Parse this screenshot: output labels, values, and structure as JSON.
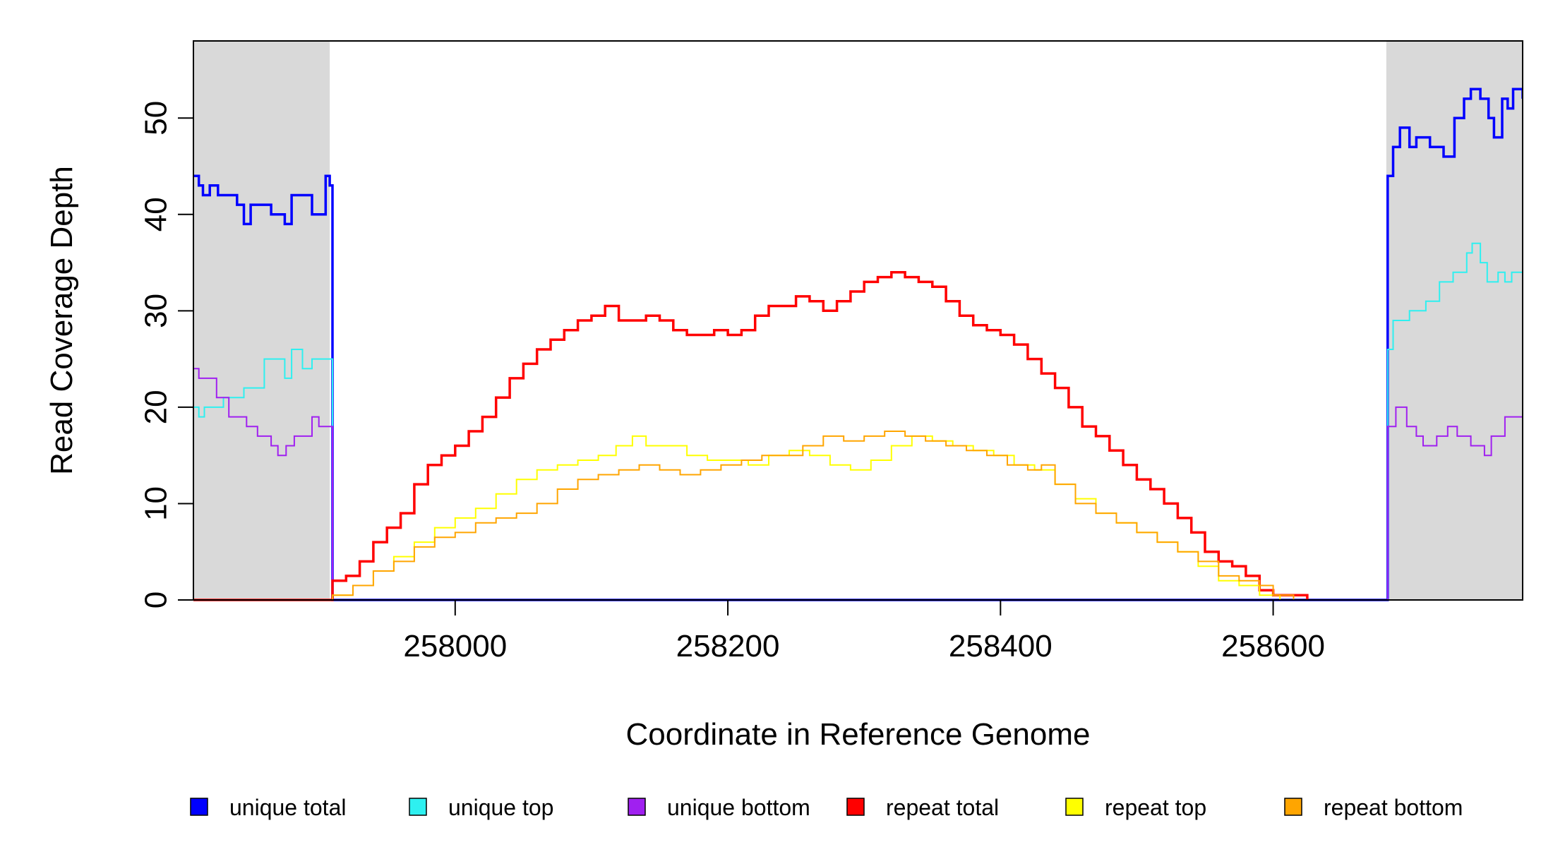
{
  "chart_data": {
    "type": "line",
    "xlabel": "Coordinate in Reference Genome",
    "ylabel": "Read Coverage Depth",
    "xlim": [
      257808,
      258783
    ],
    "ylim": [
      0,
      58
    ],
    "x_ticks": [
      258000,
      258200,
      258400,
      258600
    ],
    "y_ticks": [
      0,
      10,
      20,
      30,
      40,
      50
    ],
    "shaded_regions": [
      {
        "from": 257808,
        "to": 257908,
        "color": "#d9d9d9"
      },
      {
        "from": 258683,
        "to": 258783,
        "color": "#d9d9d9"
      }
    ],
    "legend_position": "bottom",
    "series": [
      {
        "name": "unique total",
        "color": "#0000ff",
        "points": [
          [
            257808,
            44
          ],
          [
            257812,
            43
          ],
          [
            257815,
            42
          ],
          [
            257820,
            43
          ],
          [
            257826,
            42
          ],
          [
            257840,
            41
          ],
          [
            257845,
            39
          ],
          [
            257850,
            41
          ],
          [
            257865,
            40
          ],
          [
            257875,
            39
          ],
          [
            257880,
            42
          ],
          [
            257895,
            40
          ],
          [
            257905,
            44
          ],
          [
            257908,
            43
          ],
          [
            257910,
            0
          ],
          [
            258682,
            0
          ],
          [
            258684,
            44
          ],
          [
            258688,
            47
          ],
          [
            258693,
            49
          ],
          [
            258700,
            47
          ],
          [
            258705,
            48
          ],
          [
            258715,
            47
          ],
          [
            258725,
            46
          ],
          [
            258733,
            50
          ],
          [
            258740,
            52
          ],
          [
            258745,
            53
          ],
          [
            258752,
            52
          ],
          [
            258758,
            50
          ],
          [
            258762,
            48
          ],
          [
            258768,
            52
          ],
          [
            258772,
            51
          ],
          [
            258776,
            53
          ],
          [
            258783,
            52
          ]
        ]
      },
      {
        "name": "unique top",
        "color": "#2ef0f0",
        "points": [
          [
            257808,
            20
          ],
          [
            257812,
            19
          ],
          [
            257816,
            20
          ],
          [
            257830,
            21
          ],
          [
            257845,
            22
          ],
          [
            257860,
            25
          ],
          [
            257870,
            25
          ],
          [
            257875,
            23
          ],
          [
            257880,
            26
          ],
          [
            257888,
            24
          ],
          [
            257895,
            25
          ],
          [
            257908,
            25
          ],
          [
            257910,
            0
          ],
          [
            258682,
            0
          ],
          [
            258684,
            26
          ],
          [
            258688,
            29
          ],
          [
            258700,
            30
          ],
          [
            258712,
            31
          ],
          [
            258722,
            33
          ],
          [
            258732,
            34
          ],
          [
            258742,
            36
          ],
          [
            258746,
            37
          ],
          [
            258752,
            35
          ],
          [
            258757,
            33
          ],
          [
            258765,
            34
          ],
          [
            258770,
            33
          ],
          [
            258775,
            34
          ],
          [
            258783,
            34
          ]
        ]
      },
      {
        "name": "unique bottom",
        "color": "#a020f0",
        "points": [
          [
            257808,
            24
          ],
          [
            257812,
            23
          ],
          [
            257825,
            21
          ],
          [
            257834,
            19
          ],
          [
            257847,
            18
          ],
          [
            257855,
            17
          ],
          [
            257865,
            16
          ],
          [
            257870,
            15
          ],
          [
            257876,
            16
          ],
          [
            257882,
            17
          ],
          [
            257895,
            19
          ],
          [
            257900,
            18
          ],
          [
            257908,
            18
          ],
          [
            257910,
            0
          ],
          [
            258682,
            0
          ],
          [
            258684,
            18
          ],
          [
            258690,
            20
          ],
          [
            258698,
            18
          ],
          [
            258705,
            17
          ],
          [
            258710,
            16
          ],
          [
            258720,
            17
          ],
          [
            258728,
            18
          ],
          [
            258735,
            17
          ],
          [
            258745,
            16
          ],
          [
            258755,
            15
          ],
          [
            258760,
            17
          ],
          [
            258770,
            19
          ],
          [
            258783,
            19
          ]
        ]
      },
      {
        "name": "repeat total",
        "color": "#ff0000",
        "points": [
          [
            257808,
            0
          ],
          [
            257908,
            0
          ],
          [
            257910,
            2
          ],
          [
            257920,
            2.5
          ],
          [
            257930,
            4
          ],
          [
            257940,
            6
          ],
          [
            257950,
            7.5
          ],
          [
            257960,
            9
          ],
          [
            257970,
            12
          ],
          [
            257980,
            14
          ],
          [
            257990,
            15
          ],
          [
            258000,
            16
          ],
          [
            258010,
            17.5
          ],
          [
            258020,
            19
          ],
          [
            258030,
            21
          ],
          [
            258040,
            23
          ],
          [
            258050,
            24.5
          ],
          [
            258060,
            26
          ],
          [
            258070,
            27
          ],
          [
            258080,
            28
          ],
          [
            258090,
            29
          ],
          [
            258100,
            29.5
          ],
          [
            258110,
            30.5
          ],
          [
            258120,
            29
          ],
          [
            258130,
            29
          ],
          [
            258140,
            29.5
          ],
          [
            258150,
            29
          ],
          [
            258160,
            28
          ],
          [
            258170,
            27.5
          ],
          [
            258180,
            27.5
          ],
          [
            258190,
            28
          ],
          [
            258200,
            27.5
          ],
          [
            258210,
            28
          ],
          [
            258220,
            29.5
          ],
          [
            258230,
            30.5
          ],
          [
            258240,
            30.5
          ],
          [
            258250,
            31.5
          ],
          [
            258260,
            31
          ],
          [
            258270,
            30
          ],
          [
            258280,
            31
          ],
          [
            258290,
            32
          ],
          [
            258300,
            33
          ],
          [
            258310,
            33.5
          ],
          [
            258320,
            34
          ],
          [
            258330,
            33.5
          ],
          [
            258340,
            33
          ],
          [
            258350,
            32.5
          ],
          [
            258360,
            31
          ],
          [
            258370,
            29.5
          ],
          [
            258380,
            28.5
          ],
          [
            258390,
            28
          ],
          [
            258400,
            27.5
          ],
          [
            258410,
            26.5
          ],
          [
            258420,
            25
          ],
          [
            258430,
            23.5
          ],
          [
            258440,
            22
          ],
          [
            258450,
            20
          ],
          [
            258460,
            18
          ],
          [
            258470,
            17
          ],
          [
            258480,
            15.5
          ],
          [
            258490,
            14
          ],
          [
            258500,
            12.5
          ],
          [
            258510,
            11.5
          ],
          [
            258520,
            10
          ],
          [
            258530,
            8.5
          ],
          [
            258540,
            7
          ],
          [
            258550,
            5
          ],
          [
            258560,
            4
          ],
          [
            258570,
            3.5
          ],
          [
            258580,
            2.5
          ],
          [
            258590,
            1
          ],
          [
            258600,
            0.5
          ],
          [
            258620,
            0.5
          ],
          [
            258625,
            0
          ]
        ]
      },
      {
        "name": "repeat top",
        "color": "#ffff00",
        "points": [
          [
            257808,
            0
          ],
          [
            257908,
            0
          ],
          [
            257910,
            0.5
          ],
          [
            257925,
            1.5
          ],
          [
            257940,
            3
          ],
          [
            257955,
            4.5
          ],
          [
            257970,
            6
          ],
          [
            257985,
            7.5
          ],
          [
            258000,
            8.5
          ],
          [
            258015,
            9.5
          ],
          [
            258030,
            11
          ],
          [
            258045,
            12.5
          ],
          [
            258060,
            13.5
          ],
          [
            258075,
            14
          ],
          [
            258090,
            14.5
          ],
          [
            258105,
            15
          ],
          [
            258118,
            16
          ],
          [
            258130,
            17
          ],
          [
            258140,
            16
          ],
          [
            258155,
            16
          ],
          [
            258170,
            15
          ],
          [
            258185,
            14.5
          ],
          [
            258200,
            14.5
          ],
          [
            258215,
            14
          ],
          [
            258230,
            15
          ],
          [
            258245,
            15.5
          ],
          [
            258260,
            15
          ],
          [
            258275,
            14
          ],
          [
            258290,
            13.5
          ],
          [
            258305,
            14.5
          ],
          [
            258320,
            16
          ],
          [
            258335,
            17
          ],
          [
            258350,
            16.5
          ],
          [
            258365,
            16
          ],
          [
            258380,
            15.5
          ],
          [
            258395,
            15
          ],
          [
            258410,
            14
          ],
          [
            258425,
            13.5
          ],
          [
            258440,
            12
          ],
          [
            258455,
            10.5
          ],
          [
            258470,
            9
          ],
          [
            258485,
            8
          ],
          [
            258500,
            7
          ],
          [
            258515,
            6
          ],
          [
            258530,
            5
          ],
          [
            258545,
            3.5
          ],
          [
            258560,
            2
          ],
          [
            258575,
            1.5
          ],
          [
            258590,
            0.5
          ],
          [
            258600,
            0.5
          ],
          [
            258605,
            0
          ]
        ]
      },
      {
        "name": "repeat bottom",
        "color": "#ffa500",
        "points": [
          [
            257808,
            0
          ],
          [
            257908,
            0
          ],
          [
            257910,
            0.5
          ],
          [
            257925,
            1.5
          ],
          [
            257940,
            3
          ],
          [
            257955,
            4
          ],
          [
            257970,
            5.5
          ],
          [
            257985,
            6.5
          ],
          [
            258000,
            7
          ],
          [
            258015,
            8
          ],
          [
            258030,
            8.5
          ],
          [
            258045,
            9
          ],
          [
            258060,
            10
          ],
          [
            258075,
            11.5
          ],
          [
            258090,
            12.5
          ],
          [
            258105,
            13
          ],
          [
            258120,
            13.5
          ],
          [
            258135,
            14
          ],
          [
            258150,
            13.5
          ],
          [
            258165,
            13
          ],
          [
            258180,
            13.5
          ],
          [
            258195,
            14
          ],
          [
            258210,
            14.5
          ],
          [
            258225,
            15
          ],
          [
            258240,
            15
          ],
          [
            258255,
            16
          ],
          [
            258270,
            17
          ],
          [
            258285,
            16.5
          ],
          [
            258300,
            17
          ],
          [
            258315,
            17.5
          ],
          [
            258330,
            17
          ],
          [
            258345,
            16.5
          ],
          [
            258360,
            16
          ],
          [
            258375,
            15.5
          ],
          [
            258390,
            15
          ],
          [
            258405,
            14
          ],
          [
            258420,
            13.5
          ],
          [
            258430,
            14
          ],
          [
            258440,
            12
          ],
          [
            258455,
            10
          ],
          [
            258470,
            9
          ],
          [
            258485,
            8
          ],
          [
            258500,
            7
          ],
          [
            258515,
            6
          ],
          [
            258530,
            5
          ],
          [
            258545,
            4
          ],
          [
            258560,
            2.5
          ],
          [
            258575,
            2
          ],
          [
            258590,
            1.5
          ],
          [
            258600,
            0.5
          ],
          [
            258610,
            0.5
          ],
          [
            258615,
            0
          ]
        ]
      }
    ]
  }
}
